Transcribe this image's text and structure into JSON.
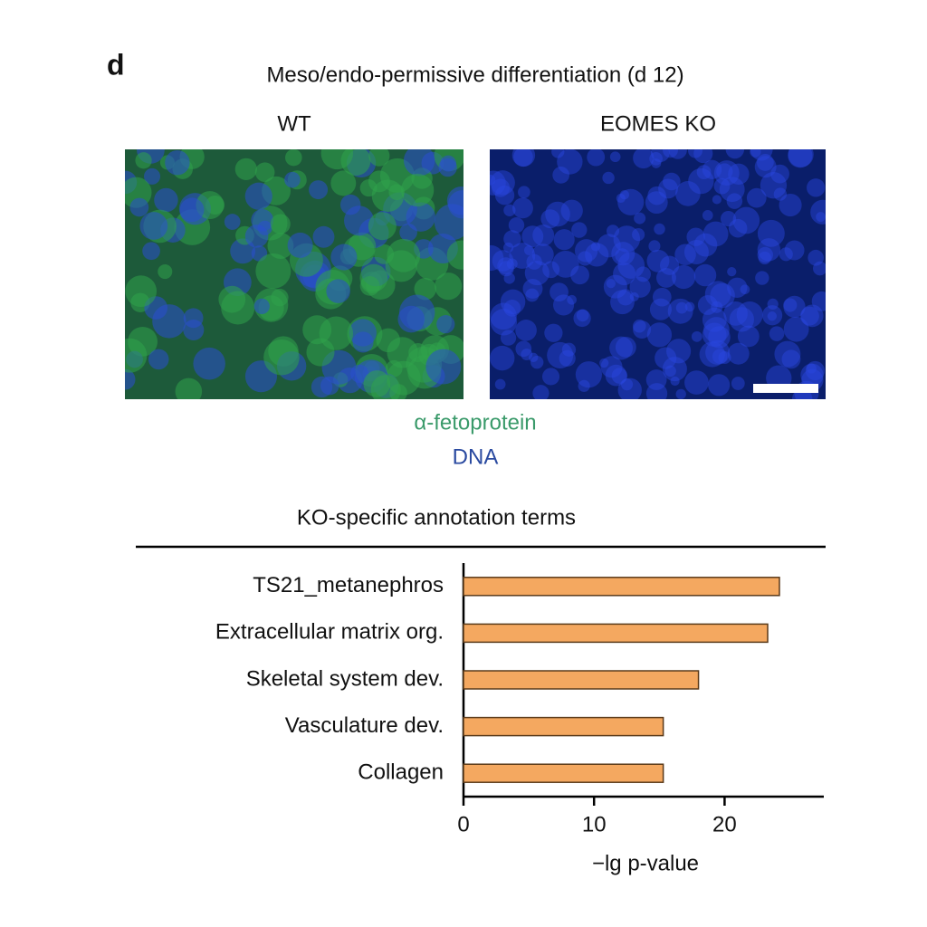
{
  "panel_label": "d",
  "figure_title": "Meso/endo-permissive differentiation (d 12)",
  "images": [
    {
      "label": "WT"
    },
    {
      "label": "EOMES KO"
    }
  ],
  "stain_legend": [
    "α-fetoprotein",
    "DNA"
  ],
  "chart_data": {
    "type": "barh",
    "title": "KO-specific annotation terms",
    "categories": [
      "TS21_metanephros",
      "Extracellular matrix org.",
      "Skeletal system dev.",
      "Vasculature dev.",
      "Collagen"
    ],
    "values": [
      24.2,
      23.3,
      18,
      15.3,
      15.3
    ],
    "color": "#f4a860",
    "xlim": [
      0,
      27.6
    ],
    "xticks": [
      0,
      10,
      20
    ],
    "x_label": "−lg p-value"
  }
}
